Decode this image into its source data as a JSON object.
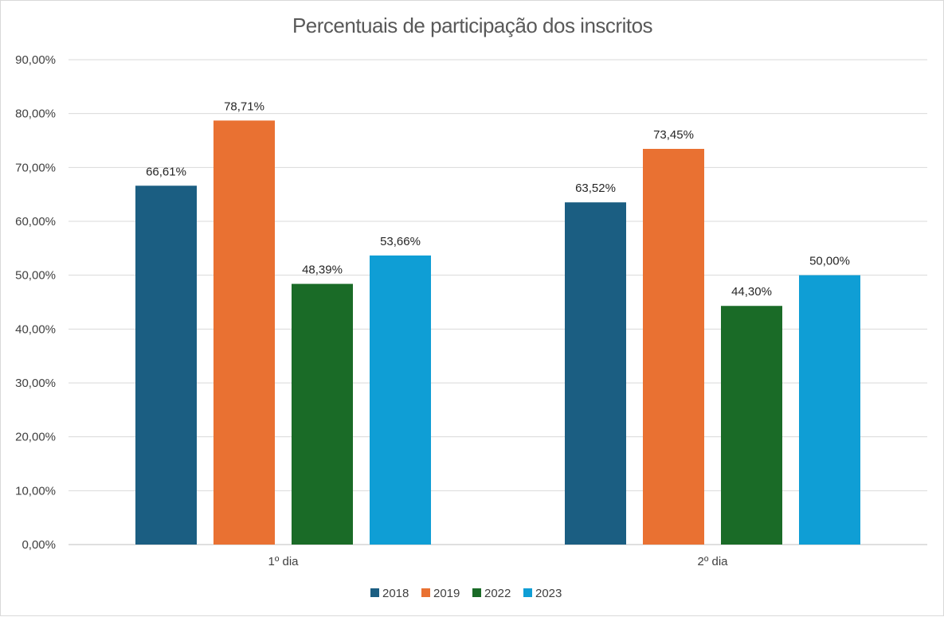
{
  "chart_data": {
    "type": "bar",
    "title": "Percentuais de participação dos inscritos",
    "xlabel": "",
    "ylabel": "",
    "categories": [
      "1º dia",
      "2º dia"
    ],
    "series": [
      {
        "name": "2018",
        "color": "#1b5e82",
        "values": [
          66.61,
          63.52
        ],
        "labels": [
          "66,61%",
          "63,52%"
        ]
      },
      {
        "name": "2019",
        "color": "#e97132",
        "values": [
          78.71,
          73.45
        ],
        "labels": [
          "78,71%",
          "73,45%"
        ]
      },
      {
        "name": "2022",
        "color": "#1a6b27",
        "values": [
          48.39,
          44.3
        ],
        "labels": [
          "48,39%",
          "44,30%"
        ]
      },
      {
        "name": "2023",
        "color": "#0f9ed5",
        "values": [
          53.66,
          50.0
        ],
        "labels": [
          "53,66%",
          "50,00%"
        ]
      }
    ],
    "ylim": [
      0,
      90
    ],
    "yticks": [
      0,
      10,
      20,
      30,
      40,
      50,
      60,
      70,
      80,
      90
    ],
    "ytick_labels": [
      "0,00%",
      "10,00%",
      "20,00%",
      "30,00%",
      "40,00%",
      "50,00%",
      "60,00%",
      "70,00%",
      "80,00%",
      "90,00%"
    ],
    "grid": true,
    "legend_position": "bottom"
  }
}
